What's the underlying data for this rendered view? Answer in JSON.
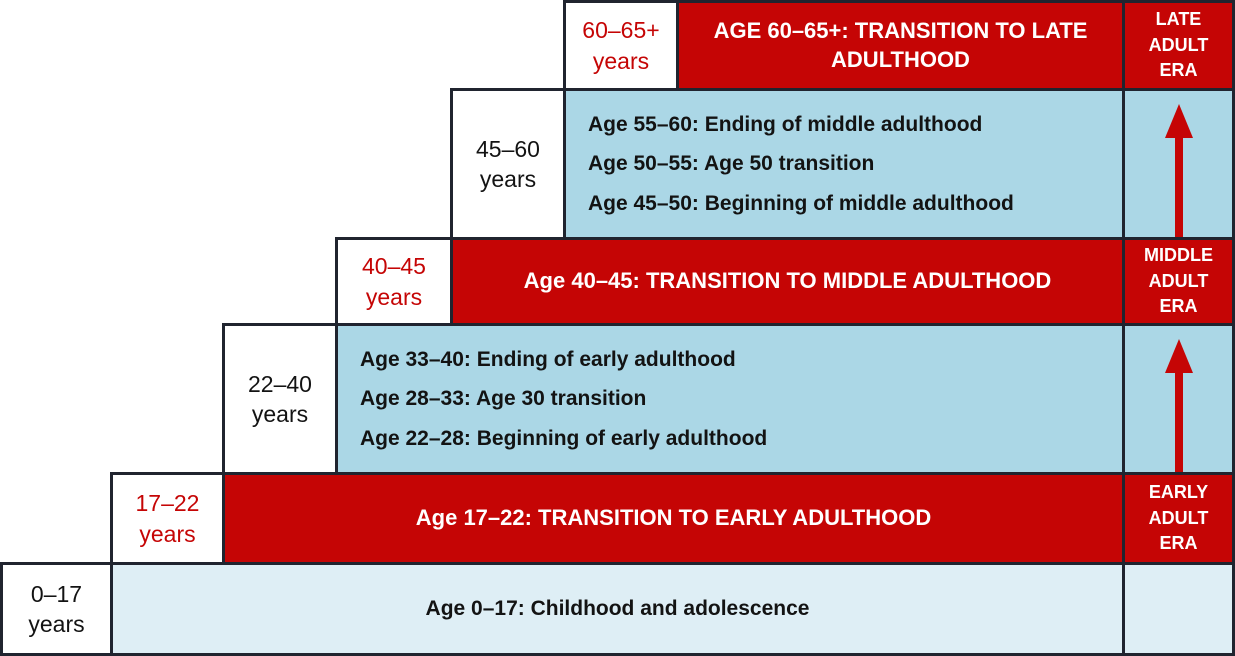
{
  "palette": {
    "red": "#c50505",
    "band_blue": "#abd7e6",
    "pale_blue": "#deeef5",
    "border": "#20242f",
    "white": "#ffffff",
    "text_dark": "#131313"
  },
  "rows": [
    {
      "age_range": "60–65+",
      "age_unit": "years",
      "age_color": "red",
      "band": {
        "style": "transition",
        "text": "AGE 60–65+: TRANSITION TO LATE ADULTHOOD"
      },
      "era": {
        "style": "label",
        "lines": [
          "LATE",
          "ADULT",
          "ERA"
        ]
      }
    },
    {
      "age_range": "45–60",
      "age_unit": "years",
      "age_color": "dark",
      "band": {
        "style": "stages",
        "lines": [
          "Age 55–60: Ending of middle adulthood",
          "Age 50–55: Age 50 transition",
          "Age 45–50: Beginning of middle adulthood"
        ]
      },
      "era": {
        "style": "arrow",
        "icon": "up-arrow-icon"
      }
    },
    {
      "age_range": "40–45",
      "age_unit": "years",
      "age_color": "red",
      "band": {
        "style": "transition",
        "text": "Age 40–45: TRANSITION TO MIDDLE ADULTHOOD"
      },
      "era": {
        "style": "label",
        "lines": [
          "MIDDLE",
          "ADULT",
          "ERA"
        ]
      }
    },
    {
      "age_range": "22–40",
      "age_unit": "years",
      "age_color": "dark",
      "band": {
        "style": "stages",
        "lines": [
          "Age 33–40: Ending of early adulthood",
          "Age 28–33: Age 30 transition",
          "Age 22–28: Beginning of early adulthood"
        ]
      },
      "era": {
        "style": "arrow",
        "icon": "up-arrow-icon"
      }
    },
    {
      "age_range": "17–22",
      "age_unit": "years",
      "age_color": "red",
      "band": {
        "style": "transition",
        "text": "Age 17–22: TRANSITION TO EARLY ADULTHOOD"
      },
      "era": {
        "style": "label",
        "lines": [
          "EARLY",
          "ADULT",
          "ERA"
        ]
      }
    },
    {
      "age_range": "0–17",
      "age_unit": "years",
      "age_color": "dark",
      "band": {
        "style": "childhood",
        "text": "Age 0–17: Childhood and adolescence"
      },
      "era": {
        "style": "empty"
      }
    }
  ]
}
